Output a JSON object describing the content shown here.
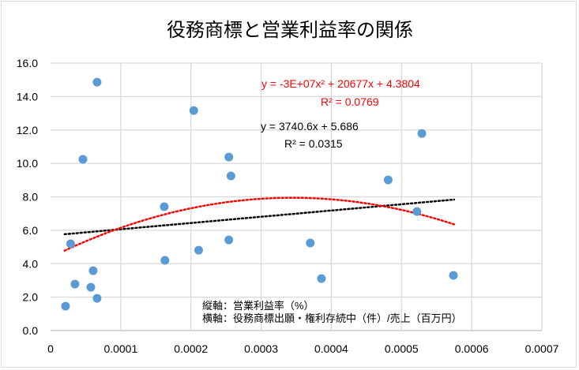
{
  "chart_data": {
    "type": "scatter",
    "title": "役務商標と営業利益率の関係",
    "xlabel": "",
    "ylabel": "",
    "xlim": [
      0,
      0.0007
    ],
    "ylim": [
      0,
      16
    ],
    "grid": true,
    "x_ticks": [
      "0",
      "0.0001",
      "0.0002",
      "0.0003",
      "0.0004",
      "0.0005",
      "0.0006",
      "0.0007"
    ],
    "y_ticks": [
      "0.0",
      "2.0",
      "4.0",
      "6.0",
      "8.0",
      "10.0",
      "12.0",
      "14.0",
      "16.0"
    ],
    "points": [
      [
        2.13e-05,
        1.46
      ],
      [
        2.86e-05,
        5.19
      ],
      [
        3.48e-05,
        2.78
      ],
      [
        4.61e-05,
        10.24
      ],
      [
        5.74e-05,
        2.59
      ],
      [
        6.07e-05,
        3.58
      ],
      [
        6.63e-05,
        1.93
      ],
      [
        6.63e-05,
        14.86
      ],
      [
        0.000162,
        7.41
      ],
      [
        0.000163,
        4.2
      ],
      [
        0.000204,
        13.16
      ],
      [
        0.000211,
        4.81
      ],
      [
        0.000254,
        10.38
      ],
      [
        0.000257,
        9.25
      ],
      [
        0.000254,
        5.42
      ],
      [
        0.00037,
        5.24
      ],
      [
        0.000386,
        3.11
      ],
      [
        0.000481,
        9.01
      ],
      [
        0.000522,
        7.12
      ],
      [
        0.000529,
        11.79
      ],
      [
        0.000574,
        3.3
      ]
    ],
    "point_color": "#5b9bd5",
    "trendlines": [
      {
        "kind": "linear",
        "coefficients": [
          5.686,
          3740.6
        ],
        "equation": "y = 3740.6x + 5.686",
        "r2": "R² = 0.0315",
        "color": "#000000",
        "x_range": [
          2e-05,
          0.000575
        ]
      },
      {
        "kind": "poly2",
        "coefficients": [
          4.3804,
          20677,
          -30000000
        ],
        "equation": "y = -3E+07x² + 20677x + 4.3804",
        "r2": "R² = 0.0769",
        "color": "#ff0000",
        "x_range": [
          2e-05,
          0.000575
        ]
      }
    ],
    "annotation": [
      "縦軸：営業利益率（%）",
      "横軸：役務商標出願・権利存続中（件）/売上（百万円）"
    ]
  }
}
